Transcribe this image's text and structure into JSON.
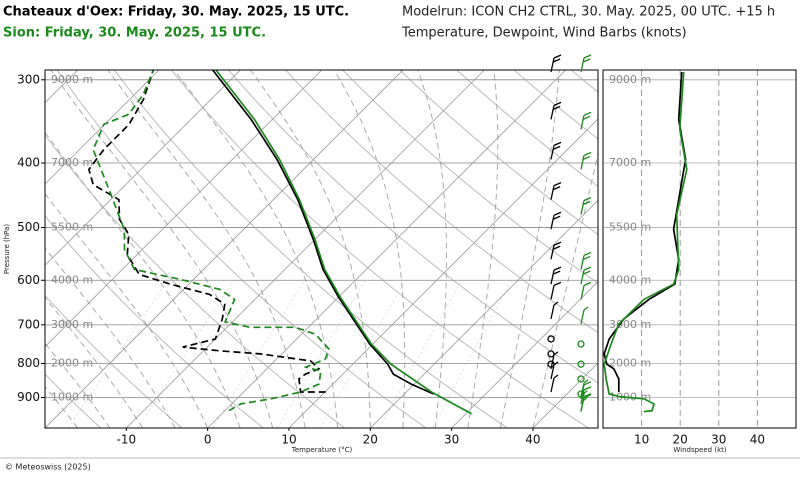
{
  "header": {
    "station1": "Chateaux d'Oex: Friday, 30. May. 2025, 15 UTC.",
    "station2": "Sion: Friday, 30. May. 2025, 15 UTC.",
    "modelrun": "Modelrun: ICON CH2 CTRL, 30. May. 2025, 00 UTC. +15 h",
    "variables": "Temperature, Dewpoint, Wind Barbs (knots)"
  },
  "credit": "© Meteoswiss (2025)",
  "chart_data": [
    {
      "type": "skewt",
      "ylabel": "Pressure (hPa)",
      "xlabel": "Temperature (°C)",
      "xlim": [
        -20,
        48
      ],
      "ylim": [
        1000,
        290
      ],
      "log_y": true,
      "skew_deg": 45,
      "xticks": [
        -10,
        0,
        10,
        20,
        30,
        40
      ],
      "yticks": [
        300,
        400,
        500,
        600,
        700,
        800,
        900
      ],
      "height_labels": [
        "9000 m",
        "7000 m",
        "5500 m",
        "4000 m",
        "3000 m",
        "2000 m",
        "1000 m"
      ],
      "series": [
        {
          "color": "#000000",
          "style": "solid",
          "pressure": [
            889,
            859,
            830,
            802,
            748,
            636,
            578,
            521,
            454,
            395,
            344,
            290
          ],
          "values": [
            23.6,
            19.6,
            16.2,
            14.3,
            9.6,
            0.0,
            -5.3,
            -10.2,
            -17.0,
            -24.5,
            -32.6,
            -43.4
          ]
        },
        {
          "color": "#1a8a1a",
          "style": "solid",
          "pressure": [
            952,
            883,
            802,
            748,
            636,
            578,
            521,
            454,
            395,
            344,
            290
          ],
          "values": [
            30.7,
            23.1,
            14.7,
            9.8,
            0.2,
            -5.1,
            -10.0,
            -16.8,
            -24.2,
            -32.2,
            -43.0
          ]
        },
        {
          "color": "#000000",
          "style": "dashed",
          "pressure": [
            883,
            883,
            844,
            830,
            815,
            793,
            774,
            766,
            756,
            735,
            686,
            652,
            630,
            608,
            588,
            549,
            512,
            486,
            454,
            431,
            409,
            382,
            350,
            321,
            290
          ],
          "values": [
            10.1,
            7.0,
            5.2,
            5.4,
            6.4,
            4.4,
            -2.6,
            -7.9,
            -13.0,
            -10.0,
            -11.6,
            -13.1,
            -16.2,
            -22.3,
            -27.3,
            -31.2,
            -33.5,
            -36.5,
            -39.0,
            -44.0,
            -46.4,
            -47.0,
            -47.0,
            -48.3,
            -50.7
          ]
        },
        {
          "color": "#1a8a1a",
          "style": "dashed",
          "pressure": [
            942,
            920,
            904,
            883,
            859,
            821,
            810,
            788,
            761,
            723,
            706,
            706,
            693,
            641,
            619,
            598,
            578,
            539,
            503,
            438,
            382,
            350,
            338,
            316,
            290
          ],
          "values": [
            0.5,
            1.1,
            4.2,
            7.0,
            8.3,
            6.9,
            4.6,
            6.0,
            5.2,
            1.7,
            -1.6,
            -7.2,
            -10.9,
            -12.5,
            -15.6,
            -21.7,
            -28.5,
            -32.2,
            -34.7,
            -41.5,
            -48.3,
            -50.1,
            -48.3,
            -48.9,
            -50.7
          ]
        }
      ]
    },
    {
      "type": "wind",
      "xlabel": "Windspeed (kt)",
      "xlim": [
        0,
        50
      ],
      "ylim": [
        1000,
        290
      ],
      "log_y": true,
      "xticks": [
        10,
        20,
        30,
        40
      ],
      "yticks": [
        {
          "value": 300,
          "label": "9000 m"
        },
        {
          "value": 400,
          "label": "7000 m"
        },
        {
          "value": 500,
          "label": "5500 m"
        },
        {
          "value": 600,
          "label": "4000 m"
        },
        {
          "value": 700,
          "label": "3000 m"
        },
        {
          "value": 800,
          "label": "2000 m"
        },
        {
          "value": 900,
          "label": "1000 m"
        }
      ],
      "series": [
        {
          "color": "#000000",
          "pressure": [
            292,
            344,
            395,
            454,
            503,
            558,
            608,
            641,
            686,
            735,
            774,
            802,
            815,
            844,
            883
          ],
          "values": [
            20.4,
            19.6,
            21.4,
            19.6,
            18.3,
            19.6,
            18.6,
            11.9,
            5.4,
            1.6,
            0.3,
            1.0,
            2.8,
            4.1,
            4.1
          ]
        },
        {
          "color": "#1a8a1a",
          "pressure": [
            292,
            356,
            409,
            478,
            578,
            608,
            641,
            698,
            748,
            802,
            844,
            889,
            898,
            904,
            920,
            942,
            945
          ],
          "values": [
            20.9,
            19.9,
            21.7,
            19.1,
            19.6,
            18.3,
            10.6,
            4.1,
            2.1,
            0.3,
            0.8,
            1.6,
            4.7,
            10.6,
            13.2,
            12.7,
            10.6
          ]
        }
      ]
    }
  ]
}
